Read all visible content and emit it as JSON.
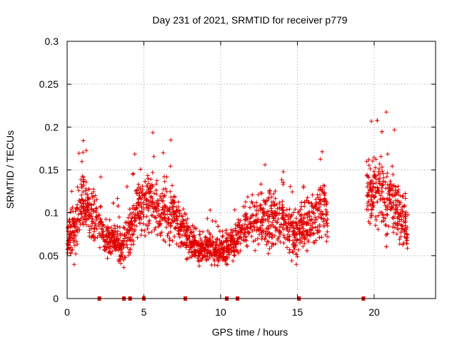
{
  "chart_data": {
    "type": "scatter",
    "title": "Day 231 of 2021, SRMTID for receiver p779",
    "xlabel": "GPS time / hours",
    "ylabel": "SRMTID / TECUs",
    "xlim": [
      0,
      24
    ],
    "ylim": [
      0,
      0.3
    ],
    "x_ticks": [
      0,
      5,
      10,
      15,
      20
    ],
    "x_tick_labels": [
      "0",
      "5",
      "10",
      "15",
      "20"
    ],
    "y_ticks": [
      0,
      0.05,
      0.1,
      0.15,
      0.2,
      0.25,
      0.3
    ],
    "y_tick_labels": [
      "0",
      "0.05",
      "0.1",
      "0.15",
      "0.2",
      "0.25",
      "0.3"
    ],
    "grid": true,
    "marker": "+",
    "color": "#e00000",
    "data_gaps_at_zero_hours": [
      2.1,
      3.7,
      4.1,
      5.0,
      7.7,
      10.4,
      11.1,
      15.1,
      19.3
    ],
    "profile": [
      [
        0.0,
        0.07,
        0.025
      ],
      [
        0.5,
        0.08,
        0.03
      ],
      [
        1.0,
        0.11,
        0.035
      ],
      [
        1.5,
        0.1,
        0.03
      ],
      [
        2.0,
        0.09,
        0.03
      ],
      [
        2.5,
        0.07,
        0.02
      ],
      [
        3.0,
        0.07,
        0.02
      ],
      [
        3.5,
        0.06,
        0.02
      ],
      [
        4.0,
        0.07,
        0.025
      ],
      [
        4.5,
        0.1,
        0.03
      ],
      [
        5.0,
        0.12,
        0.04
      ],
      [
        5.5,
        0.11,
        0.035
      ],
      [
        6.0,
        0.1,
        0.03
      ],
      [
        6.5,
        0.1,
        0.035
      ],
      [
        7.0,
        0.1,
        0.03
      ],
      [
        7.5,
        0.08,
        0.025
      ],
      [
        8.0,
        0.07,
        0.02
      ],
      [
        8.5,
        0.06,
        0.018
      ],
      [
        9.0,
        0.06,
        0.018
      ],
      [
        9.5,
        0.06,
        0.018
      ],
      [
        10.0,
        0.055,
        0.015
      ],
      [
        10.5,
        0.06,
        0.018
      ],
      [
        11.0,
        0.07,
        0.02
      ],
      [
        11.5,
        0.08,
        0.025
      ],
      [
        12.0,
        0.09,
        0.025
      ],
      [
        12.5,
        0.09,
        0.03
      ],
      [
        13.0,
        0.09,
        0.03
      ],
      [
        13.5,
        0.1,
        0.035
      ],
      [
        14.0,
        0.09,
        0.03
      ],
      [
        14.5,
        0.08,
        0.025
      ],
      [
        15.0,
        0.08,
        0.03
      ],
      [
        15.5,
        0.085,
        0.03
      ],
      [
        16.0,
        0.09,
        0.03
      ],
      [
        16.5,
        0.11,
        0.035
      ],
      [
        17.0,
        0.1,
        0.03
      ],
      [
        19.5,
        0.13,
        0.035
      ],
      [
        20.0,
        0.13,
        0.04
      ],
      [
        20.5,
        0.12,
        0.04
      ],
      [
        21.0,
        0.12,
        0.04
      ],
      [
        21.5,
        0.1,
        0.035
      ],
      [
        22.0,
        0.09,
        0.03
      ],
      [
        22.2,
        0.08,
        0.03
      ]
    ]
  }
}
